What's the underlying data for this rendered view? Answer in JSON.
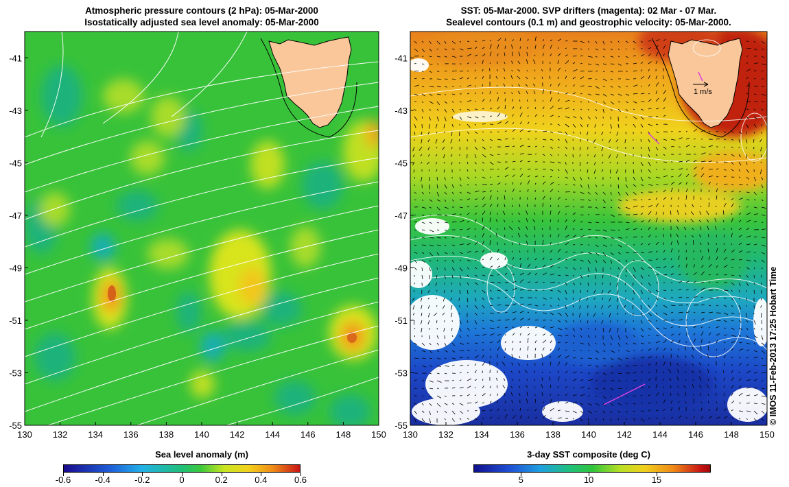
{
  "left_map": {
    "title_line1": "Atmospheric pressure contours (2 hPa): 05-Mar-2000",
    "title_line2": "Isostatically adjusted sea level anomaly: 05-Mar-2000",
    "x_ticks": [
      "130",
      "132",
      "134",
      "136",
      "138",
      "140",
      "142",
      "144",
      "146",
      "148",
      "150"
    ],
    "y_ticks": [
      "-41",
      "-43",
      "-45",
      "-47",
      "-49",
      "-51",
      "-53",
      "-55"
    ],
    "colorbar_label": "Sea level anomaly (m)",
    "colorbar_ticks": [
      "-0.6",
      "-0.4",
      "-0.2",
      "0",
      "0.2",
      "0.4",
      "0.6"
    ],
    "colorbar_range": [
      -0.6,
      0.6
    ],
    "lon_range": [
      130,
      150
    ],
    "lat_range": [
      -55,
      -40
    ],
    "colors": {
      "land": "#f9c79a",
      "contour": "#ffffff"
    }
  },
  "right_map": {
    "title_line1": "SST: 05-Mar-2000. SVP drifters (magenta): 02 Mar - 07 Mar.",
    "title_line2": "Sealevel contours (0.1 m) and geostrophic velocity: 05-Mar-2000.",
    "x_ticks": [
      "130",
      "132",
      "134",
      "136",
      "138",
      "140",
      "142",
      "144",
      "146",
      "148",
      "150"
    ],
    "y_ticks": [
      "-41",
      "-43",
      "-45",
      "-47",
      "-49",
      "-51",
      "-53",
      "-55"
    ],
    "velocity_scale_label": "1 m/s",
    "colorbar_label": "3-day SST composite (deg C)",
    "colorbar_ticks": [
      "5",
      "10",
      "15"
    ],
    "colorbar_range": [
      1.5,
      19
    ],
    "lon_range": [
      130,
      150
    ],
    "lat_range": [
      -55,
      -40
    ],
    "colors": {
      "land": "#f9c79a",
      "drifter": "#e040e0"
    }
  },
  "credit": "© IMOS 11-Feb-2013 17:25 Hobart Time"
}
